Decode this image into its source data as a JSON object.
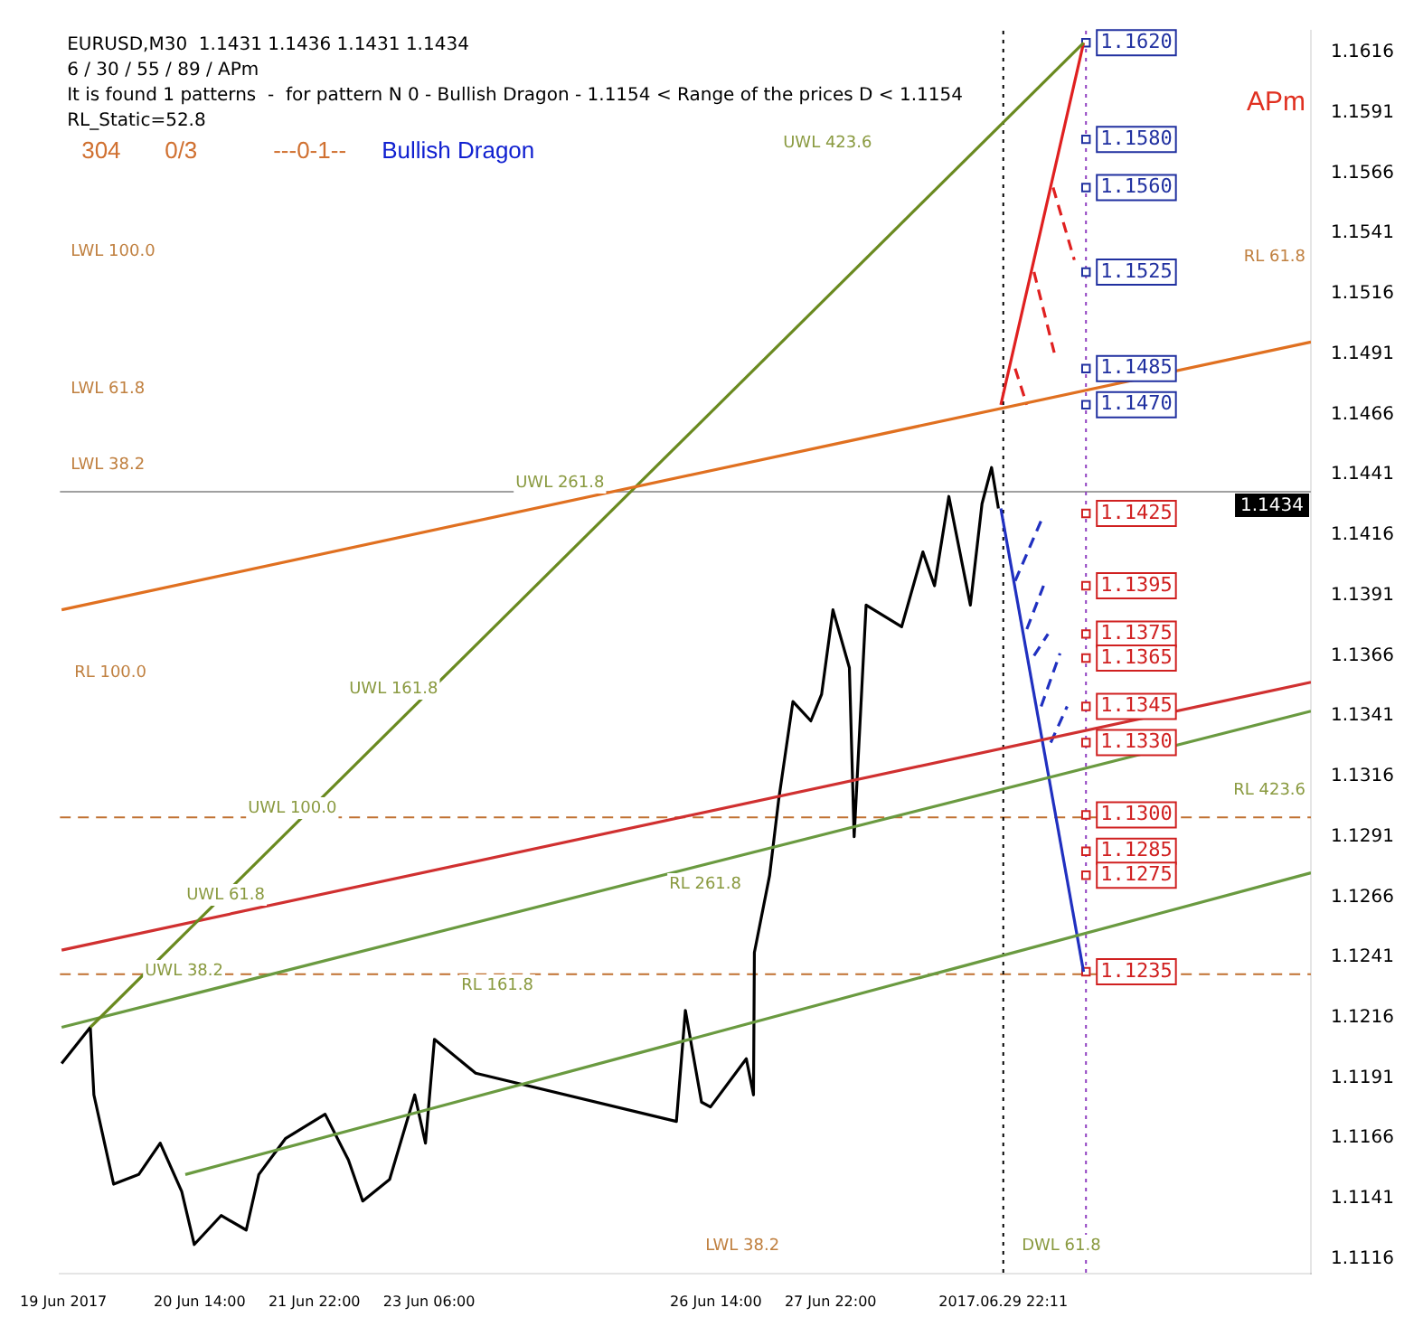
{
  "chart_data": {
    "type": "line",
    "title": "EURUSD,M30  1.1431 1.1436 1.1431 1.1434",
    "subtitle": "6 / 30 / 55 / 89 / APm",
    "annotations": [
      "It is found 1 patterns  -  for pattern N 0 - Bullish Dragon - 1.1154 < Range of the prices D < 1.1154",
      "RL_Static=52.8",
      "304",
      "0/3",
      "---0-1--",
      "Bullish Dragon",
      "APm",
      "UWL 423.6",
      "UWL 261.8",
      "UWL 161.8",
      "UWL 100.0",
      "UWL 61.8",
      "UWL 38.2",
      "LWL 100.0",
      "LWL 61.8",
      "LWL 38.2",
      "RL 100.0",
      "RL 161.8",
      "RL 261.8",
      "RL 423.6",
      "RL 61.8",
      "LWL 38.2",
      "DWL 61.8"
    ],
    "xlim": [
      "2017-06-18T23:00",
      "2017-07-03T12:00"
    ],
    "ylim": [
      1.111,
      1.1625
    ],
    "xticks": [
      {
        "value": "2017-06-19",
        "label": "19 Jun 2017"
      },
      {
        "value": "2017-06-20T14:00",
        "label": "20 Jun 14:00"
      },
      {
        "value": "2017-06-21T22:00",
        "label": "21 Jun 22:00"
      },
      {
        "value": "2017-06-23T06:00",
        "label": "23 Jun 06:00"
      },
      {
        "value": "2017-06-26T14:00",
        "label": "26 Jun 14:00"
      },
      {
        "value": "2017-06-27T22:00",
        "label": "27 Jun 22:00"
      },
      {
        "value": "2017-06-29T22:11",
        "label": "2017.06.29 22:11"
      }
    ],
    "yticks": [
      1.1116,
      1.1141,
      1.1166,
      1.1191,
      1.1216,
      1.1241,
      1.1266,
      1.1291,
      1.1316,
      1.1341,
      1.1366,
      1.1391,
      1.1416,
      1.1441,
      1.1466,
      1.1491,
      1.1516,
      1.1541,
      1.1566,
      1.1591,
      1.1616
    ],
    "marker": "none",
    "ref_lines": [
      {
        "axis": "y",
        "value": 1.1434,
        "label": "1.1434",
        "color": "#a0a0a0"
      },
      {
        "axis": "y",
        "value": 1.1299,
        "color": "#c07030",
        "line_style": "dashed"
      },
      {
        "axis": "y",
        "value": 1.1234,
        "color": "#c07030",
        "line_style": "dashed"
      },
      {
        "axis": "x",
        "value": "2017-06-29T22:11",
        "color": "#000000",
        "line_style": "dotted"
      },
      {
        "axis": "x",
        "value": "2017-06-30T21:15",
        "color": "#9040c0",
        "line_style": "dotted"
      }
    ],
    "series": [
      {
        "color": "#e07020",
        "x": [
          "2017-06-18T23:30",
          "2017-07-03T12:00"
        ],
        "values": [
          1.1385,
          1.1496
        ]
      },
      {
        "color": "#6a8a20",
        "x": [
          "2017-06-19T07:30",
          "2017-06-30T20:35"
        ],
        "values": [
          1.1212,
          1.162
        ]
      },
      {
        "color": "#d03030",
        "x": [
          "2017-06-18T23:30",
          "2017-07-03T12:00"
        ],
        "values": [
          1.1244,
          1.1355
        ]
      },
      {
        "color": "#6a9a40",
        "x": [
          "2017-06-18T23:30",
          "2017-07-03T12:00"
        ],
        "values": [
          1.1212,
          1.1343
        ]
      },
      {
        "color": "#6a9a40",
        "x": [
          "2017-06-20T10:00",
          "2017-07-03T12:00"
        ],
        "values": [
          1.1151,
          1.1276
        ]
      },
      {
        "color": "#000000",
        "x": [
          "2017-06-18T23:30",
          "2017-06-19T07:30",
          "2017-06-19T08:30",
          "2017-06-19T14:00",
          "2017-06-19T21:00",
          "2017-06-20T03:00",
          "2017-06-20T09:00",
          "2017-06-20T12:30",
          "2017-06-20T20:00",
          "2017-06-21T03:00",
          "2017-06-21T06:30",
          "2017-06-21T14:00",
          "2017-06-22T01:00",
          "2017-06-22T07:30",
          "2017-06-22T11:30",
          "2017-06-22T19:00",
          "2017-06-23T02:00",
          "2017-06-23T05:00",
          "2017-06-23T07:30",
          "2017-06-23T19:00",
          "2017-06-26T03:00",
          "2017-06-26T05:30",
          "2017-06-26T10:00",
          "2017-06-26T12:30",
          "2017-06-26T22:30",
          "2017-06-27T00:30",
          "2017-06-27T00:45",
          "2017-06-27T05:00",
          "2017-06-27T07:30",
          "2017-06-27T11:30",
          "2017-06-27T16:30",
          "2017-06-27T19:30",
          "2017-06-27T22:40",
          "2017-06-28T03:15",
          "2017-06-28T04:35",
          "2017-06-28T07:55",
          "2017-06-28T17:50",
          "2017-06-28T23:45",
          "2017-06-29T03:00",
          "2017-06-29T07:00",
          "2017-06-29T13:00",
          "2017-06-29T16:15",
          "2017-06-29T18:55",
          "2017-06-29T20:50"
        ],
        "values": [
          1.1197,
          1.1212,
          1.1184,
          1.1147,
          1.1151,
          1.1164,
          1.1144,
          1.1122,
          1.1134,
          1.1128,
          1.1151,
          1.1166,
          1.1176,
          1.1157,
          1.114,
          1.1149,
          1.1184,
          1.1164,
          1.1207,
          1.1193,
          1.1173,
          1.1219,
          1.1181,
          1.1179,
          1.1199,
          1.1184,
          1.1243,
          1.1275,
          1.1306,
          1.1347,
          1.1339,
          1.135,
          1.1385,
          1.1361,
          1.1291,
          1.1387,
          1.1378,
          1.1409,
          1.1395,
          1.1432,
          1.1387,
          1.1429,
          1.1444,
          1.1427
        ]
      },
      {
        "color": "#e02020",
        "x": [
          "2017-06-29T21:30",
          "2017-06-30T20:35"
        ],
        "values": [
          1.147,
          1.162
        ]
      },
      {
        "color": "#e02020",
        "line_style": "dashed",
        "x": [
          "2017-06-30T01:30",
          "2017-06-30T04:45",
          null,
          "2017-06-30T06:45",
          "2017-06-30T12:40",
          null,
          "2017-06-30T12:05",
          "2017-06-30T18:00"
        ],
        "values": [
          1.1485,
          1.147,
          null,
          1.1525,
          1.149,
          null,
          1.156,
          1.153
        ]
      },
      {
        "color": "#2030c0",
        "x": [
          "2017-06-29T21:30",
          "2017-06-30T20:35"
        ],
        "values": [
          1.1427,
          1.1235
        ]
      },
      {
        "color": "#2030c0",
        "line_style": "dashed",
        "x": [
          "2017-06-30T01:30",
          "2017-06-30T08:45",
          null,
          "2017-06-30T04:45",
          "2017-06-30T09:25",
          null,
          "2017-06-30T06:45",
          "2017-06-30T10:40",
          null,
          "2017-06-30T08:45",
          "2017-06-30T14:00",
          null,
          "2017-06-30T11:25",
          "2017-06-30T16:00"
        ],
        "values": [
          1.1397,
          1.1422,
          null,
          1.1377,
          1.1395,
          null,
          1.1366,
          1.1375,
          null,
          1.1345,
          1.1367,
          null,
          1.133,
          1.1345
        ]
      },
      {
        "type": "scatter",
        "color": "#2030a0",
        "marker": "square",
        "x": [
          "2017-06-30T21:15",
          "2017-06-30T21:15",
          "2017-06-30T21:15",
          "2017-06-30T21:15",
          "2017-06-30T21:15",
          "2017-06-30T21:15"
        ],
        "values": [
          1.162,
          1.158,
          1.156,
          1.1525,
          1.1485,
          1.147
        ],
        "value_labels": [
          "1.1620",
          "1.1580",
          "1.1560",
          "1.1525",
          "1.1485",
          "1.1470"
        ]
      },
      {
        "type": "scatter",
        "color": "#d02020",
        "marker": "square",
        "x": [
          "2017-06-30T21:15",
          "2017-06-30T21:15",
          "2017-06-30T21:15",
          "2017-06-30T21:15",
          "2017-06-30T21:15",
          "2017-06-30T21:15",
          "2017-06-30T21:15",
          "2017-06-30T21:15",
          "2017-06-30T21:15",
          "2017-06-30T21:15"
        ],
        "values": [
          1.1425,
          1.1395,
          1.1375,
          1.1365,
          1.1345,
          1.133,
          1.13,
          1.1285,
          1.1275,
          1.1235
        ],
        "value_labels": [
          "1.1425",
          "1.1395",
          "1.1375",
          "1.1365",
          "1.1345",
          "1.1330",
          "1.1300",
          "1.1285",
          "1.1275",
          "1.1235"
        ]
      }
    ]
  }
}
